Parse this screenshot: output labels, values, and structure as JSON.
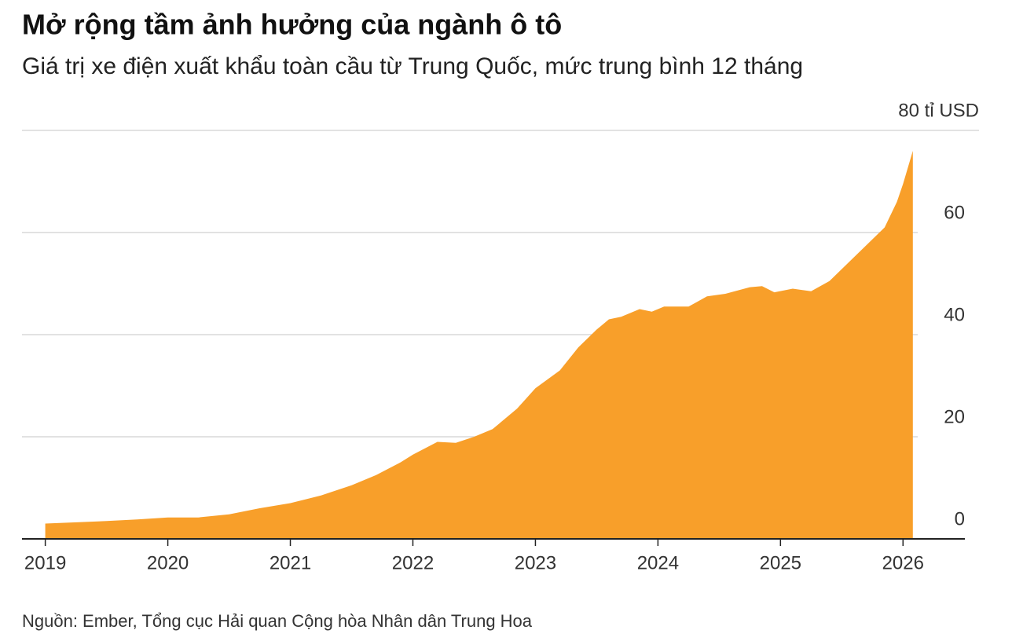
{
  "chart_data": {
    "type": "area",
    "title": "Mở rộng tầm ảnh hưởng của ngành ô tô",
    "subtitle": "Giá trị xe điện xuất khẩu toàn cầu từ Trung Quốc, mức trung bình 12 tháng",
    "source": "Nguồn: Ember, Tổng cục Hải quan Cộng hòa Nhân dân Trung Hoa",
    "color": "#f89f2a",
    "x": [
      2019.0,
      2019.5,
      2019.75,
      2020.0,
      2020.25,
      2020.5,
      2020.75,
      2021.0,
      2021.25,
      2021.5,
      2021.7,
      2021.9,
      2022.0,
      2022.2,
      2022.35,
      2022.5,
      2022.65,
      2022.85,
      2023.0,
      2023.2,
      2023.35,
      2023.5,
      2023.6,
      2023.7,
      2023.85,
      2023.95,
      2024.05,
      2024.25,
      2024.4,
      2024.55,
      2024.75,
      2024.85,
      2024.95,
      2025.1,
      2025.25,
      2025.4,
      2025.55,
      2025.7,
      2025.85,
      2025.95,
      2026.0,
      2026.08
    ],
    "values": [
      3.0,
      3.5,
      3.8,
      4.2,
      4.2,
      4.8,
      6.0,
      7.0,
      8.5,
      10.5,
      12.5,
      15,
      16.5,
      19,
      18.8,
      20,
      21.5,
      25.5,
      29.5,
      33,
      37.5,
      41,
      43,
      43.5,
      45,
      44.5,
      45.5,
      45.5,
      47.5,
      48,
      49.3,
      49.5,
      48.3,
      49,
      48.5,
      50.5,
      54,
      57.5,
      61,
      66,
      69.5,
      76
    ],
    "xlim": [
      2018.81,
      2026.12
    ],
    "xticks": [
      2019,
      2020,
      2021,
      2022,
      2023,
      2024,
      2025,
      2026
    ],
    "ylim": [
      0,
      80
    ],
    "yticks": [
      0,
      20,
      40,
      60,
      {
        "value": 80,
        "label": "80 tỉ USD"
      }
    ],
    "grid": true
  }
}
